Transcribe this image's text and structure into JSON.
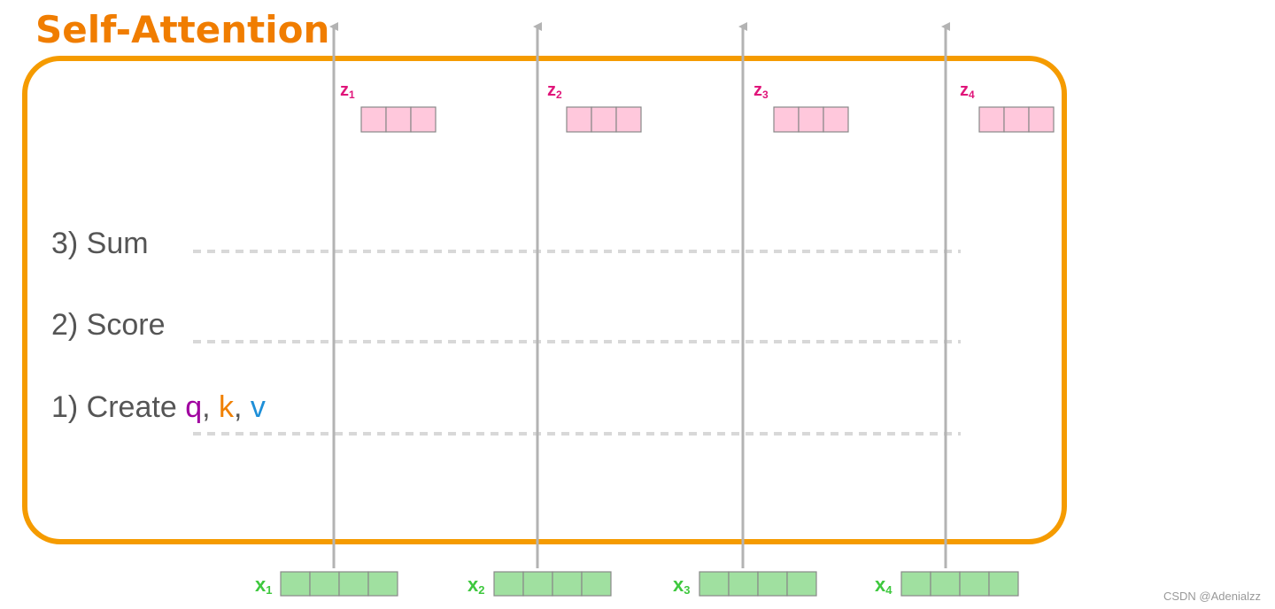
{
  "title": "Self-Attention",
  "steps": [
    {
      "label": "3) Sum"
    },
    {
      "label": "2) Score"
    },
    {
      "label": "1) Create ",
      "parts": [
        {
          "text": "q",
          "color": "#a000a0"
        },
        {
          "text": ", ",
          "color": "#555555"
        },
        {
          "text": "k",
          "color": "#f08000"
        },
        {
          "text": ", ",
          "color": "#555555"
        },
        {
          "text": "v",
          "color": "#1e8fd8"
        }
      ]
    }
  ],
  "outputs": [
    {
      "symbol": "z",
      "sub": "1"
    },
    {
      "symbol": "z",
      "sub": "2"
    },
    {
      "symbol": "z",
      "sub": "3"
    },
    {
      "symbol": "z",
      "sub": "4"
    }
  ],
  "inputs": [
    {
      "symbol": "x",
      "sub": "1"
    },
    {
      "symbol": "x",
      "sub": "2"
    },
    {
      "symbol": "x",
      "sub": "3"
    },
    {
      "symbol": "x",
      "sub": "4"
    }
  ],
  "output_vector_cells": 3,
  "input_vector_cells": 4,
  "colors": {
    "frame": "#f59b00",
    "title": "#f07d00",
    "output_label": "#e0157a",
    "output_fill": "#ffc8dc",
    "input_label": "#3ec83e",
    "input_fill": "#a0e0a0",
    "arrow": "#b3b3b3",
    "step_text": "#555555"
  },
  "watermark": "CSDN @Adenialzz"
}
